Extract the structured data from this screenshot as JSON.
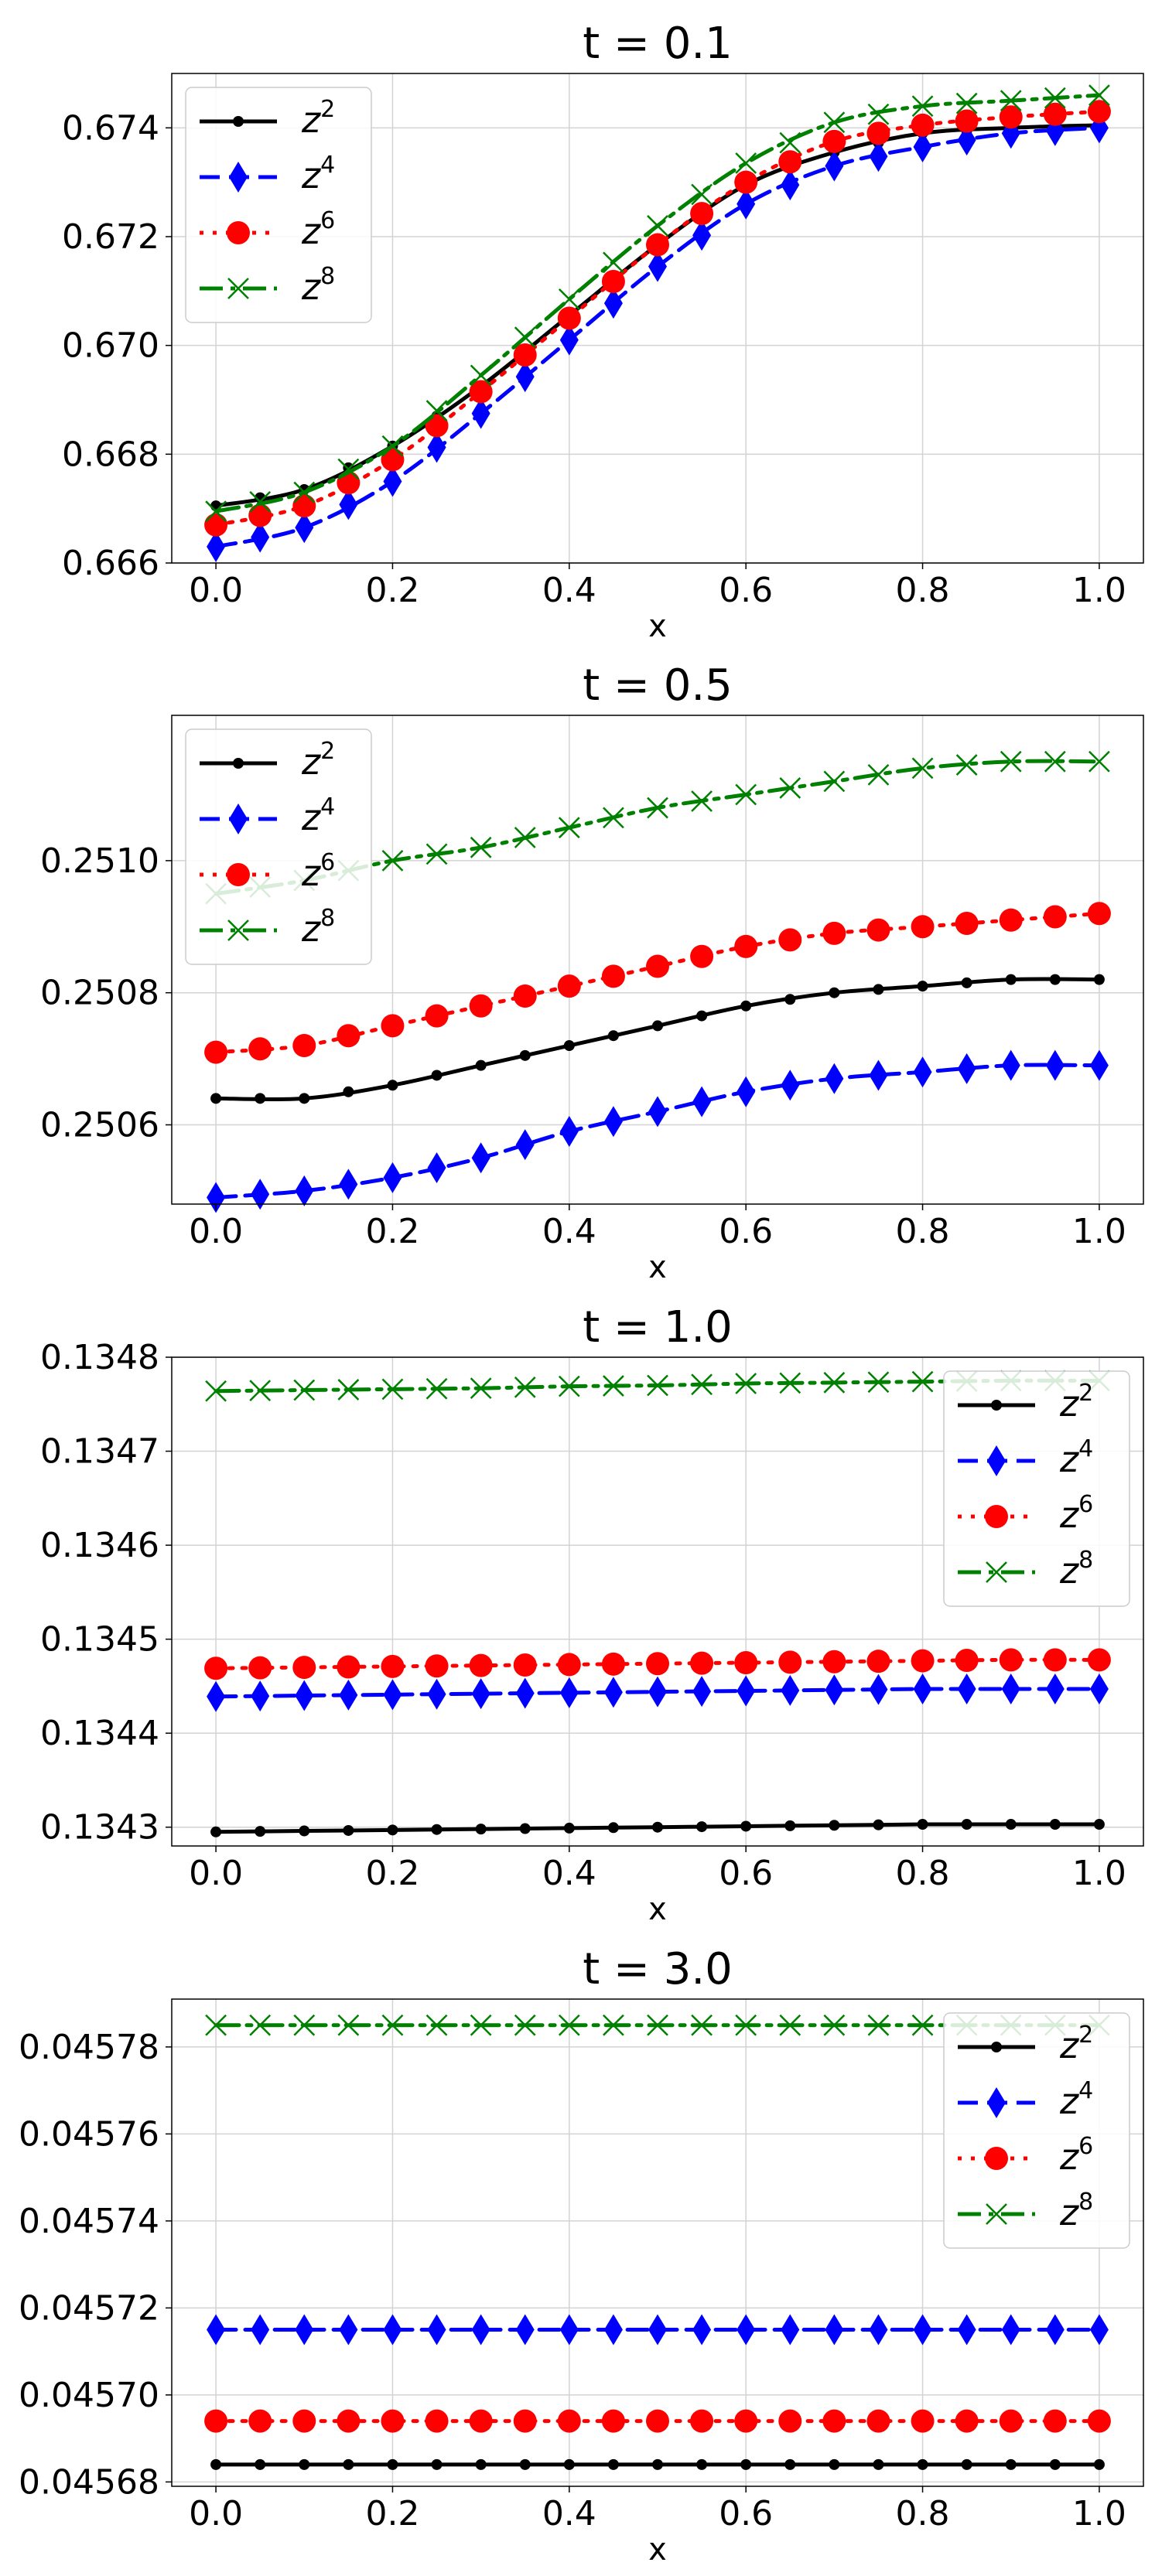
{
  "chart_data": [
    {
      "type": "line",
      "title": "t = 0.1",
      "title_var": "t",
      "title_value": "0.1",
      "xlabel": "x",
      "ylabel": "",
      "xlim": [
        -0.05,
        1.05
      ],
      "ylim": [
        0.666,
        0.675
      ],
      "xticks": [
        0.0,
        0.2,
        0.4,
        0.6,
        0.8,
        1.0
      ],
      "xtick_labels": [
        "0.0",
        "0.2",
        "0.4",
        "0.6",
        "0.8",
        "1.0"
      ],
      "yticks": [
        0.666,
        0.668,
        0.67,
        0.672,
        0.674
      ],
      "ytick_labels": [
        "0.666",
        "0.668",
        "0.670",
        "0.672",
        "0.674"
      ],
      "grid": true,
      "legend_position": "top-left",
      "series": [
        {
          "name": "z^2",
          "label_base": "z",
          "label_sup": "2",
          "color": "#000000",
          "marker": "dot",
          "dash": "solid",
          "x": [
            0.0,
            0.1,
            0.2,
            0.3,
            0.4,
            0.5,
            0.6,
            0.7,
            0.8,
            0.9,
            1.0
          ],
          "y": [
            0.66705,
            0.66735,
            0.66815,
            0.66925,
            0.67055,
            0.67185,
            0.67295,
            0.67355,
            0.6739,
            0.674,
            0.67405
          ]
        },
        {
          "name": "z^4",
          "label_base": "z",
          "label_sup": "4",
          "color": "#0000ff",
          "marker": "diamond",
          "dash": "dashed",
          "x": [
            0.0,
            0.1,
            0.2,
            0.3,
            0.4,
            0.5,
            0.6,
            0.7,
            0.8,
            0.9,
            1.0
          ],
          "y": [
            0.6663,
            0.66665,
            0.6675,
            0.66875,
            0.6701,
            0.67145,
            0.6726,
            0.6733,
            0.67365,
            0.6739,
            0.674
          ]
        },
        {
          "name": "z^6",
          "label_base": "z",
          "label_sup": "6",
          "color": "#ff0000",
          "marker": "circle",
          "dash": "dotted",
          "x": [
            0.0,
            0.1,
            0.2,
            0.3,
            0.4,
            0.5,
            0.6,
            0.7,
            0.8,
            0.9,
            1.0
          ],
          "y": [
            0.6667,
            0.66705,
            0.6679,
            0.66915,
            0.6705,
            0.67185,
            0.673,
            0.67375,
            0.67405,
            0.6742,
            0.6743
          ]
        },
        {
          "name": "z^8",
          "label_base": "z",
          "label_sup": "8",
          "color": "#008000",
          "marker": "x",
          "dash": "dashdot",
          "x": [
            0.0,
            0.1,
            0.2,
            0.3,
            0.4,
            0.5,
            0.6,
            0.7,
            0.8,
            0.9,
            1.0
          ],
          "y": [
            0.66695,
            0.6673,
            0.66815,
            0.66945,
            0.67085,
            0.6722,
            0.67335,
            0.6741,
            0.6744,
            0.6745,
            0.6746
          ]
        }
      ]
    },
    {
      "type": "line",
      "title": "t = 0.5",
      "title_var": "t",
      "title_value": "0.5",
      "xlabel": "x",
      "ylabel": "",
      "xlim": [
        -0.05,
        1.05
      ],
      "ylim": [
        0.25048,
        0.25122
      ],
      "xticks": [
        0.0,
        0.2,
        0.4,
        0.6,
        0.8,
        1.0
      ],
      "xtick_labels": [
        "0.0",
        "0.2",
        "0.4",
        "0.6",
        "0.8",
        "1.0"
      ],
      "yticks": [
        0.2506,
        0.2508,
        0.251
      ],
      "ytick_labels": [
        "0.2506",
        "0.2508",
        "0.2510"
      ],
      "grid": true,
      "legend_position": "top-left",
      "series": [
        {
          "name": "z^2",
          "label_base": "z",
          "label_sup": "2",
          "color": "#000000",
          "marker": "dot",
          "dash": "solid",
          "x": [
            0.0,
            0.1,
            0.2,
            0.3,
            0.4,
            0.5,
            0.6,
            0.7,
            0.8,
            0.9,
            1.0
          ],
          "y": [
            0.25064,
            0.25064,
            0.25066,
            0.25069,
            0.25072,
            0.25075,
            0.25078,
            0.2508,
            0.25081,
            0.25082,
            0.25082
          ]
        },
        {
          "name": "z^4",
          "label_base": "z",
          "label_sup": "4",
          "color": "#0000ff",
          "marker": "diamond",
          "dash": "dashed",
          "x": [
            0.0,
            0.1,
            0.2,
            0.3,
            0.4,
            0.5,
            0.6,
            0.7,
            0.8,
            0.9,
            1.0
          ],
          "y": [
            0.25049,
            0.2505,
            0.25052,
            0.25055,
            0.25059,
            0.25062,
            0.25065,
            0.25067,
            0.25068,
            0.25069,
            0.25069
          ]
        },
        {
          "name": "z^6",
          "label_base": "z",
          "label_sup": "6",
          "color": "#ff0000",
          "marker": "circle",
          "dash": "dotted",
          "x": [
            0.0,
            0.1,
            0.2,
            0.3,
            0.4,
            0.5,
            0.6,
            0.7,
            0.8,
            0.9,
            1.0
          ],
          "y": [
            0.25071,
            0.25072,
            0.25075,
            0.25078,
            0.25081,
            0.25084,
            0.25087,
            0.25089,
            0.2509,
            0.25091,
            0.25092
          ]
        },
        {
          "name": "z^8",
          "label_base": "z",
          "label_sup": "8",
          "color": "#008000",
          "marker": "x",
          "dash": "dashdot",
          "x": [
            0.0,
            0.1,
            0.2,
            0.3,
            0.4,
            0.5,
            0.6,
            0.7,
            0.8,
            0.9,
            1.0
          ],
          "y": [
            0.25095,
            0.25097,
            0.251,
            0.25102,
            0.25105,
            0.25108,
            0.2511,
            0.25112,
            0.25114,
            0.25115,
            0.25115
          ]
        }
      ]
    },
    {
      "type": "line",
      "title": "t = 1.0",
      "title_var": "t",
      "title_value": "1.0",
      "xlabel": "x",
      "ylabel": "",
      "xlim": [
        -0.05,
        1.05
      ],
      "ylim": [
        0.13428,
        0.1348
      ],
      "xticks": [
        0.0,
        0.2,
        0.4,
        0.6,
        0.8,
        1.0
      ],
      "xtick_labels": [
        "0.0",
        "0.2",
        "0.4",
        "0.6",
        "0.8",
        "1.0"
      ],
      "yticks": [
        0.1343,
        0.1344,
        0.1345,
        0.1346,
        0.1347,
        0.1348
      ],
      "ytick_labels": [
        "0.1343",
        "0.1344",
        "0.1345",
        "0.1346",
        "0.1347",
        "0.1348"
      ],
      "grid": true,
      "legend_position": "top-right",
      "series": [
        {
          "name": "z^2",
          "label_base": "z",
          "label_sup": "2",
          "color": "#000000",
          "marker": "dot",
          "dash": "solid",
          "x": [
            0.0,
            0.1,
            0.2,
            0.3,
            0.4,
            0.5,
            0.6,
            0.7,
            0.8,
            0.9,
            1.0
          ],
          "y": [
            0.134295,
            0.134296,
            0.134297,
            0.134298,
            0.134299,
            0.1343,
            0.134301,
            0.134302,
            0.134303,
            0.134303,
            0.134303
          ]
        },
        {
          "name": "z^4",
          "label_base": "z",
          "label_sup": "4",
          "color": "#0000ff",
          "marker": "diamond",
          "dash": "dashed",
          "x": [
            0.0,
            0.1,
            0.2,
            0.3,
            0.4,
            0.5,
            0.6,
            0.7,
            0.8,
            0.9,
            1.0
          ],
          "y": [
            0.134439,
            0.13444,
            0.134441,
            0.134442,
            0.134443,
            0.134444,
            0.134445,
            0.134446,
            0.134447,
            0.134447,
            0.134447
          ]
        },
        {
          "name": "z^6",
          "label_base": "z",
          "label_sup": "6",
          "color": "#ff0000",
          "marker": "circle",
          "dash": "dotted",
          "x": [
            0.0,
            0.1,
            0.2,
            0.3,
            0.4,
            0.5,
            0.6,
            0.7,
            0.8,
            0.9,
            1.0
          ],
          "y": [
            0.134469,
            0.13447,
            0.134471,
            0.134472,
            0.134473,
            0.134474,
            0.134475,
            0.134476,
            0.134477,
            0.134478,
            0.134478
          ]
        },
        {
          "name": "z^8",
          "label_base": "z",
          "label_sup": "8",
          "color": "#008000",
          "marker": "x",
          "dash": "dashdot",
          "x": [
            0.0,
            0.1,
            0.2,
            0.3,
            0.4,
            0.5,
            0.6,
            0.7,
            0.8,
            0.9,
            1.0
          ],
          "y": [
            0.134764,
            0.134765,
            0.134766,
            0.134767,
            0.134769,
            0.13477,
            0.134772,
            0.134773,
            0.134774,
            0.134775,
            0.134775
          ]
        }
      ]
    },
    {
      "type": "line",
      "title": "t = 3.0",
      "title_var": "t",
      "title_value": "3.0",
      "xlabel": "x",
      "ylabel": "",
      "xlim": [
        -0.05,
        1.05
      ],
      "ylim": [
        0.045679,
        0.045791
      ],
      "xticks": [
        0.0,
        0.2,
        0.4,
        0.6,
        0.8,
        1.0
      ],
      "xtick_labels": [
        "0.0",
        "0.2",
        "0.4",
        "0.6",
        "0.8",
        "1.0"
      ],
      "yticks": [
        0.04568,
        0.0457,
        0.04572,
        0.04574,
        0.04576,
        0.04578
      ],
      "ytick_labels": [
        "0.04568",
        "0.04570",
        "0.04572",
        "0.04574",
        "0.04576",
        "0.04578"
      ],
      "grid": true,
      "legend_position": "top-right",
      "series": [
        {
          "name": "z^2",
          "label_base": "z",
          "label_sup": "2",
          "color": "#000000",
          "marker": "dot",
          "dash": "solid",
          "x": [
            0.0,
            0.1,
            0.2,
            0.3,
            0.4,
            0.5,
            0.6,
            0.7,
            0.8,
            0.9,
            1.0
          ],
          "y": [
            0.045684,
            0.045684,
            0.045684,
            0.045684,
            0.045684,
            0.045684,
            0.045684,
            0.045684,
            0.045684,
            0.045684,
            0.045684
          ]
        },
        {
          "name": "z^4",
          "label_base": "z",
          "label_sup": "4",
          "color": "#0000ff",
          "marker": "diamond",
          "dash": "dashed",
          "x": [
            0.0,
            0.1,
            0.2,
            0.3,
            0.4,
            0.5,
            0.6,
            0.7,
            0.8,
            0.9,
            1.0
          ],
          "y": [
            0.045715,
            0.045715,
            0.045715,
            0.045715,
            0.045715,
            0.045715,
            0.045715,
            0.045715,
            0.045715,
            0.045715,
            0.045715
          ]
        },
        {
          "name": "z^6",
          "label_base": "z",
          "label_sup": "6",
          "color": "#ff0000",
          "marker": "circle",
          "dash": "dotted",
          "x": [
            0.0,
            0.1,
            0.2,
            0.3,
            0.4,
            0.5,
            0.6,
            0.7,
            0.8,
            0.9,
            1.0
          ],
          "y": [
            0.045694,
            0.045694,
            0.045694,
            0.045694,
            0.045694,
            0.045694,
            0.045694,
            0.045694,
            0.045694,
            0.045694,
            0.045694
          ]
        },
        {
          "name": "z^8",
          "label_base": "z",
          "label_sup": "8",
          "color": "#008000",
          "marker": "x",
          "dash": "dashdot",
          "x": [
            0.0,
            0.1,
            0.2,
            0.3,
            0.4,
            0.5,
            0.6,
            0.7,
            0.8,
            0.9,
            1.0
          ],
          "y": [
            0.045785,
            0.045785,
            0.045785,
            0.045785,
            0.045785,
            0.045785,
            0.045785,
            0.045785,
            0.045785,
            0.045785,
            0.045785
          ]
        }
      ]
    }
  ]
}
